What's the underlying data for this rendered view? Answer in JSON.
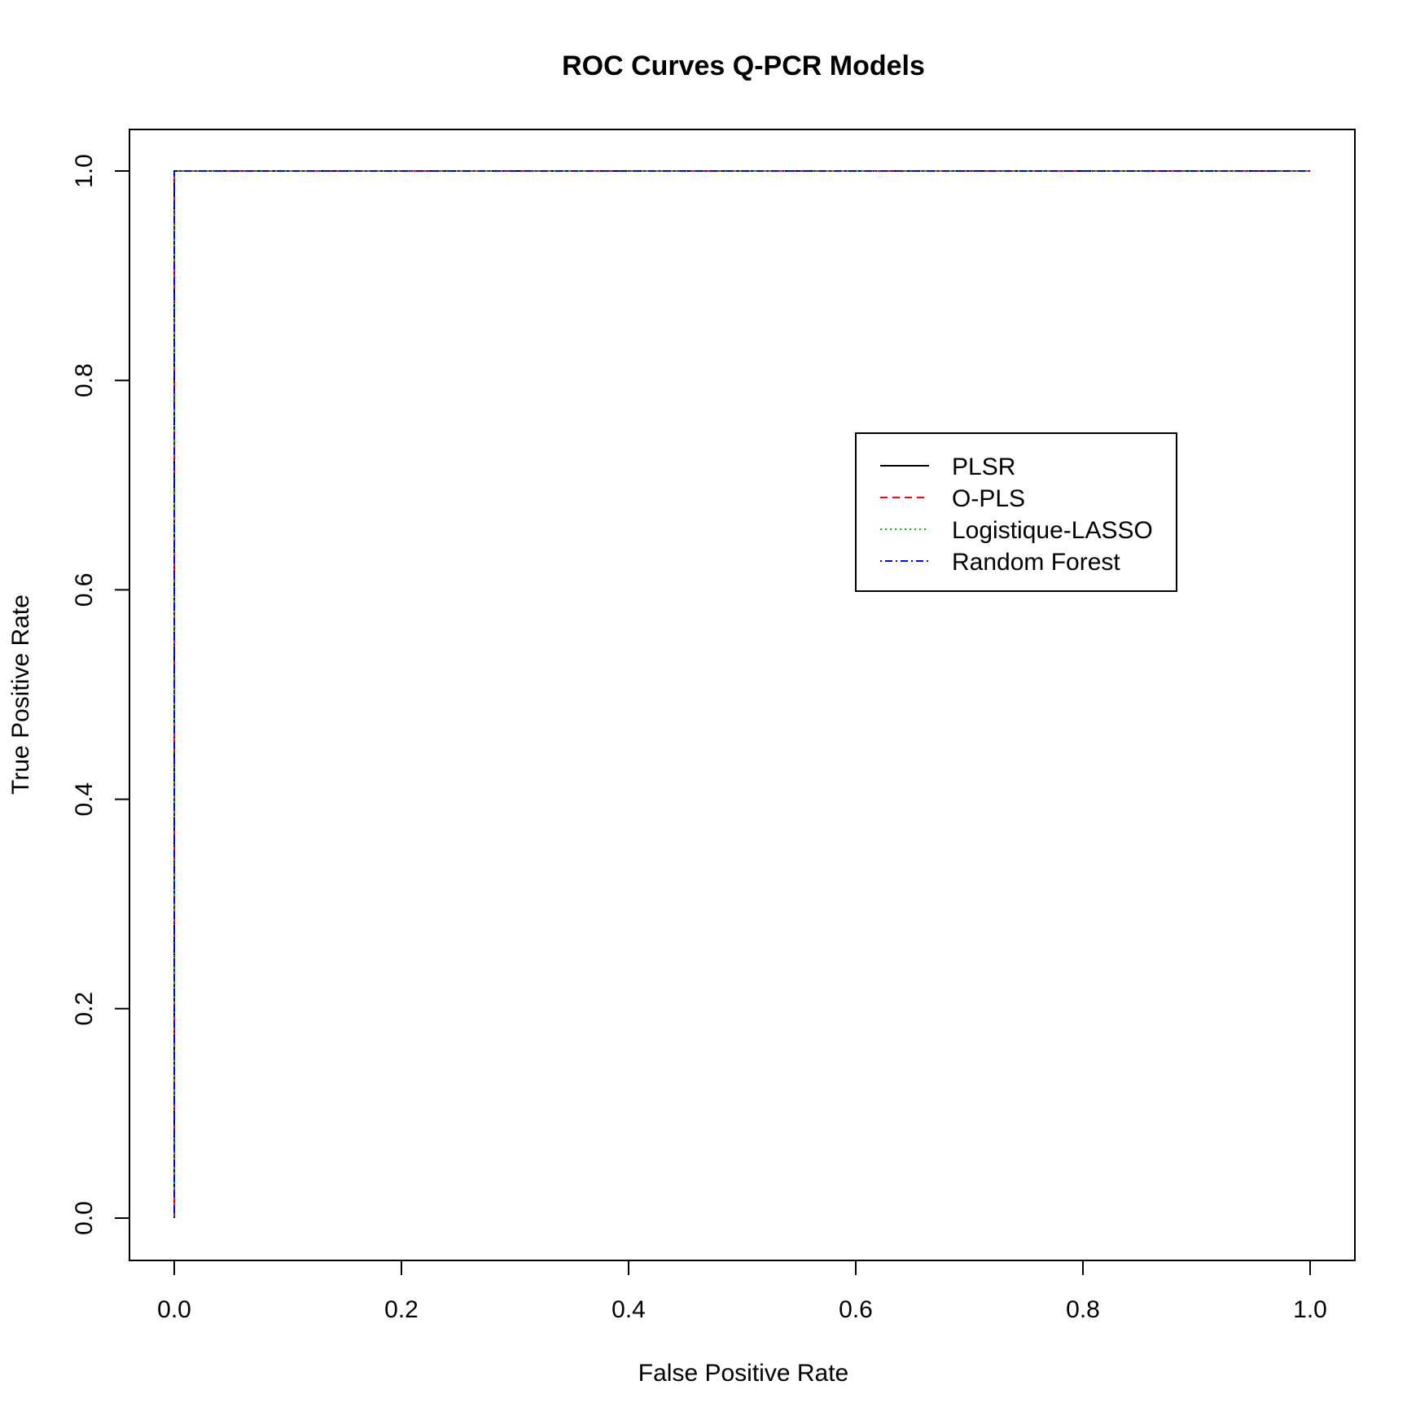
{
  "chart_data": {
    "type": "line",
    "title": "ROC Curves Q-PCR Models",
    "xlabel": "False Positive Rate",
    "ylabel": "True Positive Rate",
    "xlim": [
      0,
      1
    ],
    "ylim": [
      0,
      1
    ],
    "xticks": [
      "0.0",
      "0.2",
      "0.4",
      "0.6",
      "0.8",
      "1.0"
    ],
    "yticks": [
      "0.0",
      "0.2",
      "0.4",
      "0.6",
      "0.8",
      "1.0"
    ],
    "grid": false,
    "legend_position": "right",
    "series": [
      {
        "name": "PLSR",
        "color": "#000000",
        "dash": "solid",
        "x": [
          0,
          0,
          1
        ],
        "y": [
          0,
          1,
          1
        ]
      },
      {
        "name": "O-PLS",
        "color": "#ff0000",
        "dash": "dashed",
        "x": [
          0,
          0,
          1
        ],
        "y": [
          0,
          1,
          1
        ]
      },
      {
        "name": "Logistique-LASSO",
        "color": "#00cd00",
        "dash": "dotted",
        "x": [
          0,
          0,
          1
        ],
        "y": [
          0,
          1,
          1
        ]
      },
      {
        "name": "Random Forest",
        "color": "#0000ff",
        "dash": "dotdash",
        "x": [
          0,
          0,
          1
        ],
        "y": [
          0,
          1,
          1
        ]
      }
    ]
  }
}
